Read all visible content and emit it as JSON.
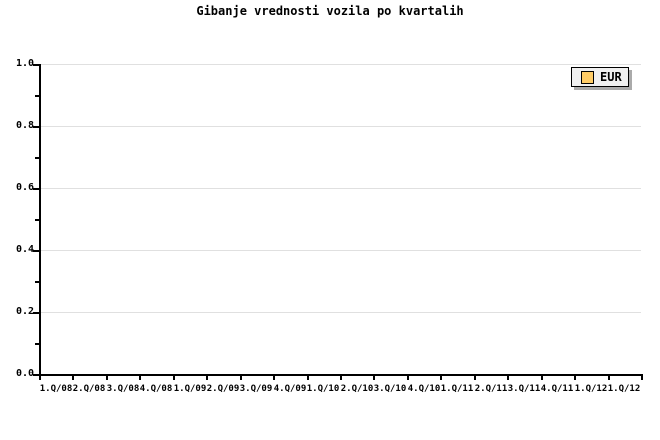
{
  "colors": {
    "background": "#FFFFFF",
    "text": "#000000",
    "axis": "#000000",
    "gridline": "#E0E0E0",
    "legend_background": "#F0F0F0",
    "legend_border": "#000000",
    "legend_shadow": "#AAAAAA",
    "series_eur": "#FFCC66"
  },
  "chart_data": {
    "type": "line",
    "title": "Gibanje vrednosti vozila po kvartalih",
    "categories": [
      "1.Q/08",
      "2.Q/08",
      "3.Q/08",
      "4.Q/08",
      "1.Q/09",
      "2.Q/09",
      "3.Q/09",
      "4.Q/09",
      "1.Q/10",
      "2.Q/10",
      "3.Q/10",
      "4.Q/10",
      "1.Q/11",
      "2.Q/11",
      "3.Q/11",
      "4.Q/11",
      "1.Q/12",
      "1.Q/12"
    ],
    "series": [
      {
        "name": "EUR",
        "color": "#FFCC66",
        "values": []
      }
    ],
    "xlabel": "",
    "ylabel": "",
    "ylim": [
      0.0,
      1.0
    ],
    "y_tick_labels": [
      "0.0",
      "0.2",
      "0.4",
      "0.6",
      "0.8",
      "1.0"
    ],
    "y_major_step": 0.2,
    "y_minor_step": 0.1,
    "grid": "horizontal gridlines at major y ticks",
    "legend_position": "top-right",
    "plot_note": "plot area is empty - no data points are drawn"
  }
}
